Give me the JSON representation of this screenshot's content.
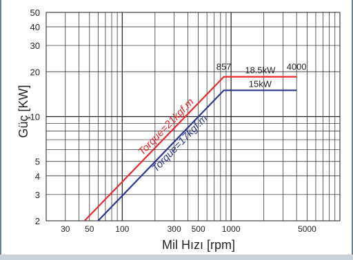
{
  "chart_data": {
    "type": "line",
    "title": "",
    "xlabel": "Mil Hızı [rpm]",
    "ylabel": "Güç [KW]",
    "xscale": "log",
    "yscale": "log",
    "xlim": [
      20,
      10000
    ],
    "ylim": [
      2,
      50
    ],
    "xticks": [
      30,
      50,
      100,
      300,
      500,
      1000,
      5000
    ],
    "yticks": [
      2,
      3,
      4,
      5,
      10,
      20,
      30,
      40,
      50
    ],
    "grid": true,
    "series": [
      {
        "name": "Torque=21kgf.m",
        "color": "#e8282b",
        "points": [
          [
            45,
            2
          ],
          [
            857,
            18.5
          ],
          [
            4000,
            18.5
          ]
        ],
        "plateau_label": "18.5kW"
      },
      {
        "name": "Torque=17kgf.m",
        "color": "#2a3592",
        "points": [
          [
            60,
            2
          ],
          [
            857,
            15
          ],
          [
            4000,
            15
          ]
        ],
        "plateau_label": "15kW"
      }
    ],
    "annotations": [
      {
        "text": "857",
        "x": 857,
        "y": 18.5
      },
      {
        "text": "4000",
        "x": 4000,
        "y": 18.5
      }
    ]
  }
}
